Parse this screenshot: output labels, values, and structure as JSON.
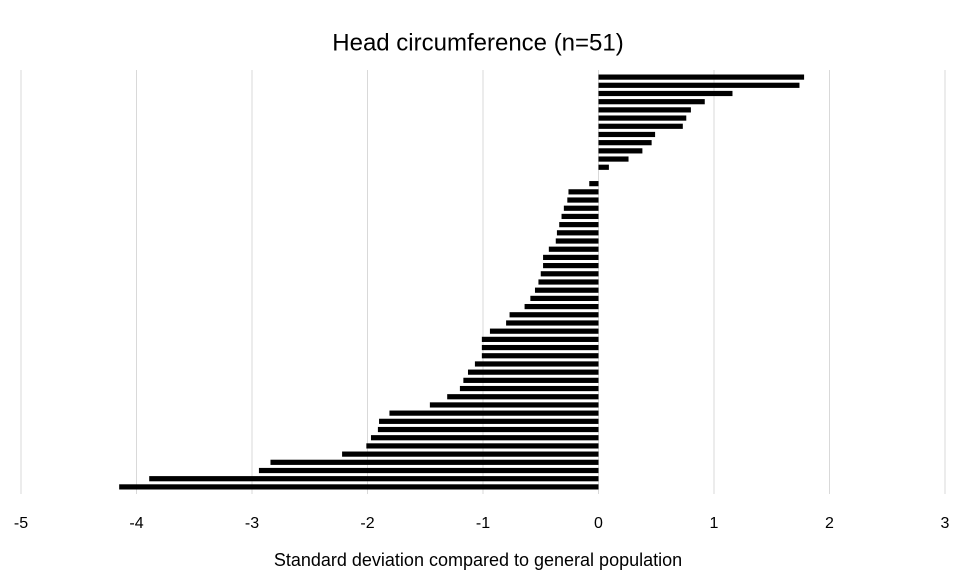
{
  "chart_data": {
    "type": "bar",
    "orientation": "horizontal",
    "title": "Head circumference (n=51)",
    "x_label": "Standard deviation compared to general population",
    "values": [
      1.78,
      1.74,
      1.16,
      0.92,
      0.8,
      0.76,
      0.73,
      0.49,
      0.46,
      0.38,
      0.26,
      0.09,
      0,
      -0.08,
      -0.26,
      -0.27,
      -0.3,
      -0.32,
      -0.34,
      -0.36,
      -0.37,
      -0.43,
      -0.48,
      -0.48,
      -0.5,
      -0.52,
      -0.55,
      -0.59,
      -0.64,
      -0.77,
      -0.8,
      -0.94,
      -1.01,
      -1.01,
      -1.01,
      -1.07,
      -1.13,
      -1.17,
      -1.2,
      -1.31,
      -1.46,
      -1.81,
      -1.9,
      -1.91,
      -1.97,
      -2.01,
      -2.22,
      -2.84,
      -2.94,
      -3.89,
      -4.15
    ],
    "color": "#000000",
    "xlim": [
      -5,
      3
    ],
    "xticks": [
      -5,
      -4,
      -3,
      -2,
      -1,
      0,
      1,
      2,
      3
    ],
    "grid": true
  }
}
